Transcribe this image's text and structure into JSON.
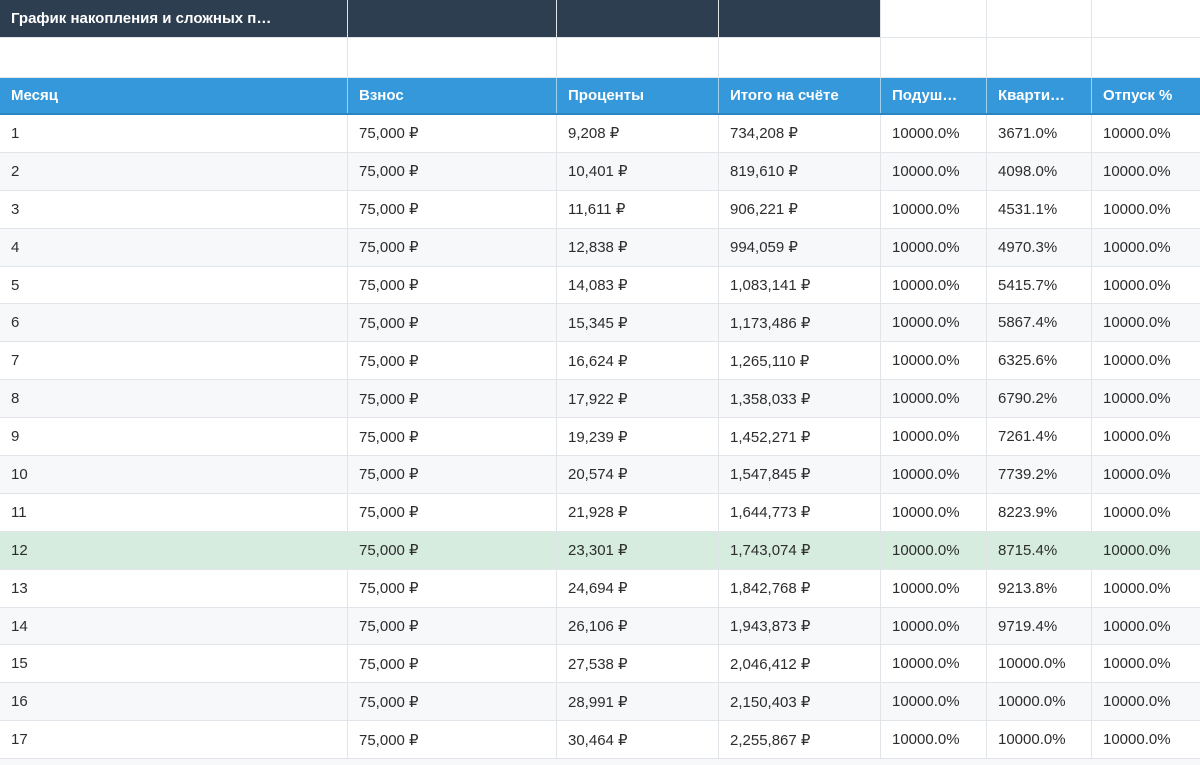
{
  "top_bar": {
    "title": "График накопления и сложных п…"
  },
  "table": {
    "columns": [
      {
        "label": "Месяц"
      },
      {
        "label": "Взнос"
      },
      {
        "label": "Проценты"
      },
      {
        "label": "Итого на счёте"
      },
      {
        "label": "Подуш…"
      },
      {
        "label": "Кварти…"
      },
      {
        "label": "Отпуск %"
      }
    ],
    "rows": [
      [
        "1",
        "75,000 ₽",
        "9,208 ₽",
        "734,208 ₽",
        "10000.0%",
        "3671.0%",
        "10000.0%"
      ],
      [
        "2",
        "75,000 ₽",
        "10,401 ₽",
        "819,610 ₽",
        "10000.0%",
        "4098.0%",
        "10000.0%"
      ],
      [
        "3",
        "75,000 ₽",
        "11,611 ₽",
        "906,221 ₽",
        "10000.0%",
        "4531.1%",
        "10000.0%"
      ],
      [
        "4",
        "75,000 ₽",
        "12,838 ₽",
        "994,059 ₽",
        "10000.0%",
        "4970.3%",
        "10000.0%"
      ],
      [
        "5",
        "75,000 ₽",
        "14,083 ₽",
        "1,083,141 ₽",
        "10000.0%",
        "5415.7%",
        "10000.0%"
      ],
      [
        "6",
        "75,000 ₽",
        "15,345 ₽",
        "1,173,486 ₽",
        "10000.0%",
        "5867.4%",
        "10000.0%"
      ],
      [
        "7",
        "75,000 ₽",
        "16,624 ₽",
        "1,265,110 ₽",
        "10000.0%",
        "6325.6%",
        "10000.0%"
      ],
      [
        "8",
        "75,000 ₽",
        "17,922 ₽",
        "1,358,033 ₽",
        "10000.0%",
        "6790.2%",
        "10000.0%"
      ],
      [
        "9",
        "75,000 ₽",
        "19,239 ₽",
        "1,452,271 ₽",
        "10000.0%",
        "7261.4%",
        "10000.0%"
      ],
      [
        "10",
        "75,000 ₽",
        "20,574 ₽",
        "1,547,845 ₽",
        "10000.0%",
        "7739.2%",
        "10000.0%"
      ],
      [
        "11",
        "75,000 ₽",
        "21,928 ₽",
        "1,644,773 ₽",
        "10000.0%",
        "8223.9%",
        "10000.0%"
      ],
      [
        "12",
        "75,000 ₽",
        "23,301 ₽",
        "1,743,074 ₽",
        "10000.0%",
        "8715.4%",
        "10000.0%"
      ],
      [
        "13",
        "75,000 ₽",
        "24,694 ₽",
        "1,842,768 ₽",
        "10000.0%",
        "9213.8%",
        "10000.0%"
      ],
      [
        "14",
        "75,000 ₽",
        "26,106 ₽",
        "1,943,873 ₽",
        "10000.0%",
        "9719.4%",
        "10000.0%"
      ],
      [
        "15",
        "75,000 ₽",
        "27,538 ₽",
        "2,046,412 ₽",
        "10000.0%",
        "10000.0%",
        "10000.0%"
      ],
      [
        "16",
        "75,000 ₽",
        "28,991 ₽",
        "2,150,403 ₽",
        "10000.0%",
        "10000.0%",
        "10000.0%"
      ],
      [
        "17",
        "75,000 ₽",
        "30,464 ₽",
        "2,255,867 ₽",
        "10000.0%",
        "10000.0%",
        "10000.0%"
      ]
    ],
    "highlight_row_number": 12
  },
  "colors": {
    "dark_bar": "#2d3e50",
    "header_blue": "#3498db",
    "row_alt": "#f6f8fa",
    "row_highlight": "#d5ecde",
    "border": "#e1e4e8",
    "text": "#2d2d2d"
  }
}
